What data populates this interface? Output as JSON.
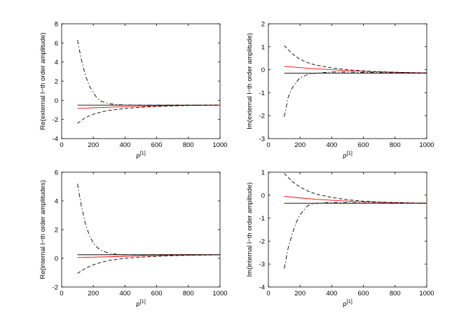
{
  "chart_data": [
    {
      "type": "line",
      "xlabel": "ρ",
      "xlabel_sup": "[1]",
      "ylabel": "Re(external l−th order amplitude)",
      "xlim": [
        0,
        1000
      ],
      "ylim": [
        -4,
        8
      ],
      "xticks": [
        0,
        200,
        400,
        600,
        800,
        1000
      ],
      "yticks": [
        -4,
        -2,
        0,
        2,
        4,
        6,
        8
      ],
      "grid": false,
      "series": [
        {
          "color": "#000000",
          "style": "solid",
          "x": [
            100,
            1000
          ],
          "y": [
            -0.5,
            -0.5
          ]
        },
        {
          "color": "#ff0000",
          "style": "solid",
          "x": [
            100,
            200,
            300,
            400,
            500,
            600,
            700,
            800,
            900,
            1000
          ],
          "y": [
            -0.85,
            -0.78,
            -0.72,
            -0.66,
            -0.62,
            -0.58,
            -0.55,
            -0.53,
            -0.51,
            -0.5
          ]
        },
        {
          "color": "#000000",
          "style": "dashed",
          "x": [
            100,
            150,
            200,
            250,
            300,
            400,
            500,
            600,
            700,
            800,
            900,
            1000
          ],
          "y": [
            -2.4,
            -1.8,
            -1.45,
            -1.22,
            -1.05,
            -0.85,
            -0.72,
            -0.64,
            -0.58,
            -0.54,
            -0.52,
            -0.5
          ]
        },
        {
          "color": "#000000",
          "style": "dashdot",
          "x": [
            100,
            125,
            150,
            175,
            200,
            225,
            250,
            300,
            350,
            400,
            500,
            600,
            800,
            1000
          ],
          "y": [
            6.3,
            4.2,
            2.6,
            1.5,
            0.8,
            0.2,
            -0.1,
            -0.35,
            -0.45,
            -0.48,
            -0.5,
            -0.5,
            -0.5,
            -0.5
          ]
        }
      ]
    },
    {
      "type": "line",
      "xlabel": "ρ",
      "xlabel_sup": "[1]",
      "ylabel": "Im(external l−th order amplitude)",
      "xlim": [
        0,
        1000
      ],
      "ylim": [
        -3,
        2
      ],
      "xticks": [
        0,
        200,
        400,
        600,
        800,
        1000
      ],
      "yticks": [
        -3,
        -2,
        -1,
        0,
        1,
        2
      ],
      "grid": false,
      "series": [
        {
          "color": "#000000",
          "style": "solid",
          "x": [
            100,
            1000
          ],
          "y": [
            -0.15,
            -0.15
          ]
        },
        {
          "color": "#ff0000",
          "style": "solid",
          "x": [
            100,
            200,
            300,
            400,
            500,
            600,
            700,
            800,
            900,
            1000
          ],
          "y": [
            0.15,
            0.09,
            0.04,
            0.0,
            -0.04,
            -0.07,
            -0.09,
            -0.11,
            -0.13,
            -0.14
          ]
        },
        {
          "color": "#000000",
          "style": "dashed",
          "x": [
            100,
            150,
            200,
            250,
            300,
            400,
            500,
            600,
            700,
            800,
            900,
            1000
          ],
          "y": [
            1.05,
            0.7,
            0.45,
            0.3,
            0.2,
            0.08,
            0.0,
            -0.05,
            -0.09,
            -0.11,
            -0.13,
            -0.14
          ]
        },
        {
          "color": "#000000",
          "style": "dashdot",
          "x": [
            100,
            125,
            150,
            175,
            200,
            250,
            300,
            400,
            500,
            600,
            800,
            1000
          ],
          "y": [
            -2.05,
            -1.2,
            -0.8,
            -0.55,
            -0.35,
            -0.2,
            -0.15,
            -0.1,
            -0.1,
            -0.12,
            -0.14,
            -0.15
          ]
        }
      ]
    },
    {
      "type": "line",
      "xlabel": "ρ",
      "xlabel_sup": "[1]",
      "ylabel": "Re(internal l−th order amplitudes)",
      "xlim": [
        0,
        1000
      ],
      "ylim": [
        -2,
        6
      ],
      "xticks": [
        0,
        200,
        400,
        600,
        800,
        1000
      ],
      "yticks": [
        -2,
        0,
        2,
        4,
        6
      ],
      "grid": false,
      "series": [
        {
          "color": "#000000",
          "style": "solid",
          "x": [
            100,
            1000
          ],
          "y": [
            0.25,
            0.25
          ]
        },
        {
          "color": "#ff0000",
          "style": "solid",
          "x": [
            100,
            200,
            300,
            400,
            500,
            600,
            700,
            800,
            900,
            1000
          ],
          "y": [
            0.05,
            0.08,
            0.11,
            0.14,
            0.17,
            0.19,
            0.21,
            0.22,
            0.23,
            0.24
          ]
        },
        {
          "color": "#000000",
          "style": "dashed",
          "x": [
            100,
            150,
            200,
            250,
            300,
            400,
            500,
            600,
            700,
            800,
            900,
            1000
          ],
          "y": [
            -1.05,
            -0.7,
            -0.45,
            -0.28,
            -0.15,
            0.0,
            0.08,
            0.14,
            0.18,
            0.21,
            0.23,
            0.24
          ]
        },
        {
          "color": "#000000",
          "style": "dashdot",
          "x": [
            100,
            125,
            150,
            175,
            200,
            225,
            250,
            300,
            350,
            400,
            500,
            600,
            800,
            1000
          ],
          "y": [
            5.2,
            3.6,
            2.4,
            1.6,
            1.05,
            0.75,
            0.55,
            0.35,
            0.28,
            0.25,
            0.25,
            0.25,
            0.25,
            0.25
          ]
        }
      ]
    },
    {
      "type": "line",
      "xlabel": "ρ",
      "xlabel_sup": "[1]",
      "ylabel": "Im(internal l−th order amplitude)",
      "xlim": [
        0,
        1000
      ],
      "ylim": [
        -4,
        1
      ],
      "xticks": [
        0,
        200,
        400,
        600,
        800,
        1000
      ],
      "yticks": [
        -4,
        -3,
        -2,
        -1,
        0,
        1
      ],
      "grid": false,
      "series": [
        {
          "color": "#000000",
          "style": "solid",
          "x": [
            100,
            1000
          ],
          "y": [
            -0.35,
            -0.35
          ]
        },
        {
          "color": "#ff0000",
          "style": "solid",
          "x": [
            100,
            200,
            300,
            400,
            500,
            600,
            700,
            800,
            900,
            1000
          ],
          "y": [
            -0.05,
            -0.12,
            -0.18,
            -0.22,
            -0.26,
            -0.29,
            -0.31,
            -0.33,
            -0.34,
            -0.35
          ]
        },
        {
          "color": "#000000",
          "style": "dashed",
          "x": [
            100,
            150,
            200,
            250,
            300,
            400,
            500,
            600,
            700,
            800,
            900,
            1000
          ],
          "y": [
            0.95,
            0.6,
            0.35,
            0.18,
            0.05,
            -0.1,
            -0.2,
            -0.26,
            -0.3,
            -0.32,
            -0.34,
            -0.35
          ]
        },
        {
          "color": "#000000",
          "style": "dashdot",
          "x": [
            100,
            125,
            150,
            175,
            200,
            250,
            300,
            400,
            500,
            600,
            800,
            1000
          ],
          "y": [
            -3.2,
            -2.3,
            -1.7,
            -1.2,
            -0.85,
            -0.45,
            -0.35,
            -0.32,
            -0.33,
            -0.34,
            -0.35,
            -0.35
          ]
        }
      ]
    }
  ]
}
